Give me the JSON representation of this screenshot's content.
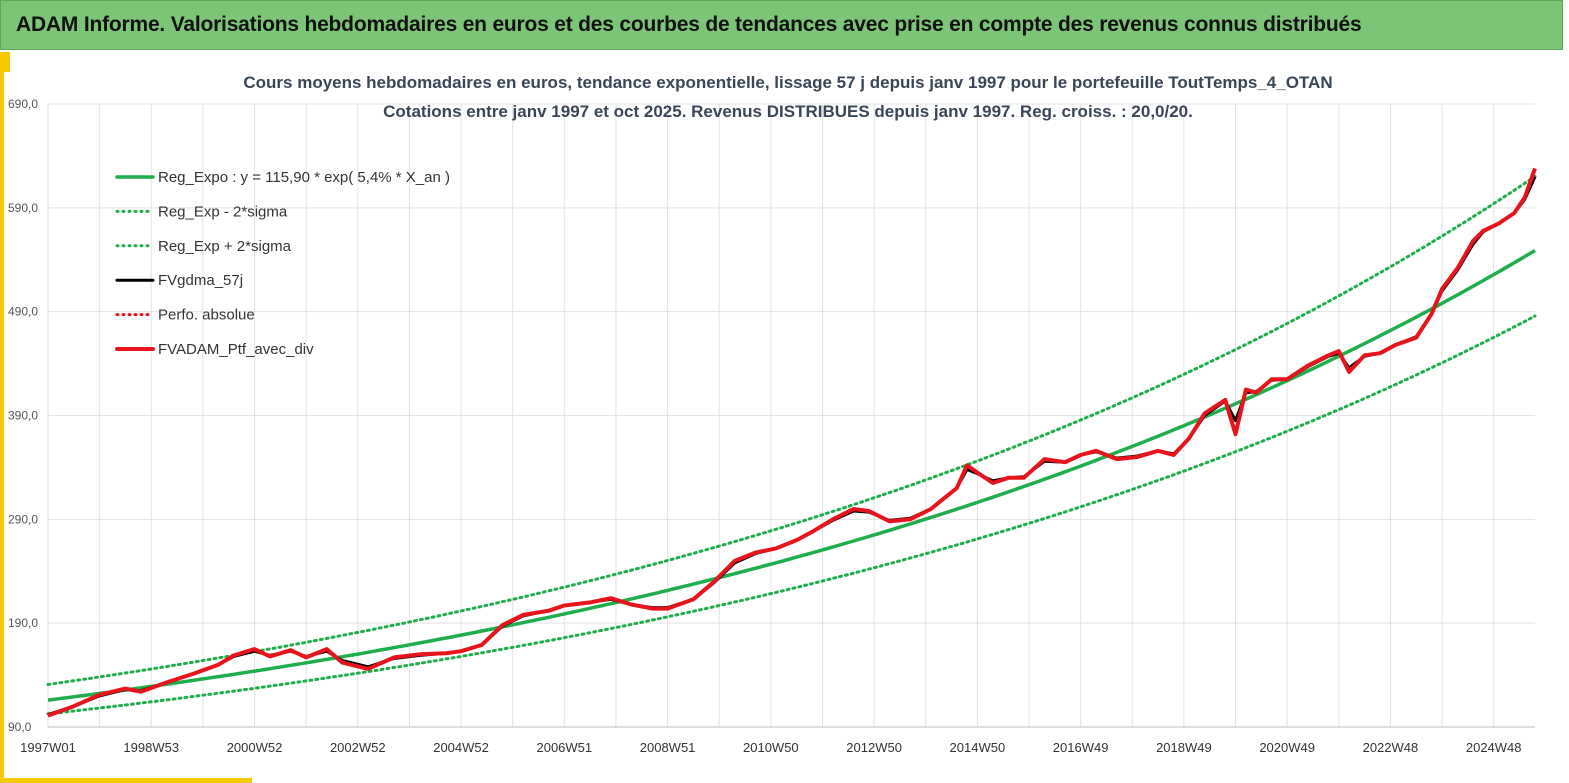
{
  "banner": {
    "title": "ADAM Informe. Valorisations hebdomadaires en euros et des courbes de tendances avec prise en compte des revenus connus distribués"
  },
  "colors": {
    "banner_bg": "#7cc576",
    "accent": "#f5c800",
    "green": "#1fae4b",
    "red": "#e8141b",
    "black": "#000000",
    "grid": "#e3e3e3"
  },
  "chart_data": {
    "type": "line",
    "title_lines": [
      "Cours moyens hebdomadaires  en euros, tendance exponentielle, lissage 57 j depuis janv 1997 pour le portefeuille ToutTemps_4_OTAN",
      "Cotations  entre janv 1997 et oct 2025. Revenus DISTRIBUES  depuis janv 1997. Reg. croiss. : 20,0/20."
    ],
    "y_axis": {
      "min": 90,
      "max": 690,
      "ticks": [
        90,
        190,
        290,
        390,
        490,
        590,
        690
      ],
      "tick_labels": [
        "90,0",
        "190,0",
        "290,0",
        "390,0",
        "490,0",
        "590,0",
        "690,0"
      ]
    },
    "x_axis": {
      "min": 1997.0,
      "max": 2025.8,
      "ticks": [
        1997.0,
        1999.0,
        2001.0,
        2003.0,
        2005.0,
        2007.0,
        2009.0,
        2011.0,
        2013.0,
        2015.0,
        2017.0,
        2019.0,
        2021.0,
        2023.0,
        2025.0
      ],
      "tick_labels": [
        "1997W01",
        "1998W53",
        "2000W52",
        "2002W52",
        "2004W52",
        "2006W51",
        "2008W51",
        "2010W50",
        "2012W50",
        "2014W50",
        "2016W49",
        "2018W49",
        "2020W49",
        "2022W48",
        "2024W48"
      ]
    },
    "grid": true,
    "legend_position": "top-left",
    "legend": [
      {
        "label": "Reg_Expo : y = 115,90 * exp( 5,4% *  X_an )",
        "color": "#1fae4b",
        "style": "solid",
        "width": 3.5
      },
      {
        "label": "Reg_Exp - 2*sigma",
        "color": "#1fae4b",
        "style": "dotted",
        "width": 3
      },
      {
        "label": "Reg_Exp + 2*sigma",
        "color": "#1fae4b",
        "style": "dotted",
        "width": 3
      },
      {
        "label": "FVgdma_57j",
        "color": "#000000",
        "style": "solid",
        "width": 3
      },
      {
        "label": "Perfo. absolue",
        "color": "#e8141b",
        "style": "dotted",
        "width": 3
      },
      {
        "label": "FVADAM_Ptf_avec_div",
        "color": "#e8141b",
        "style": "solid",
        "width": 4
      }
    ],
    "regression": {
      "a": 115.9,
      "growth": 0.054,
      "x0": 1997.0,
      "upper_factor": 1.13,
      "lower_factor": 0.885
    },
    "series_price": {
      "name": "FVADAM_Ptf_avec_div",
      "x": [
        1997.0,
        1997.5,
        1998.0,
        1998.5,
        1998.8,
        1999.3,
        1999.8,
        2000.3,
        2000.6,
        2001.0,
        2001.3,
        2001.7,
        2002.0,
        2002.4,
        2002.7,
        2003.2,
        2003.7,
        2004.2,
        2004.7,
        2005.0,
        2005.4,
        2005.8,
        2006.2,
        2006.7,
        2007.0,
        2007.5,
        2007.9,
        2008.3,
        2008.7,
        2009.0,
        2009.5,
        2009.9,
        2010.3,
        2010.7,
        2011.1,
        2011.5,
        2011.8,
        2012.2,
        2012.6,
        2012.9,
        2013.3,
        2013.7,
        2014.1,
        2014.3,
        2014.6,
        2014.8,
        2015.0,
        2015.3,
        2015.6,
        2015.9,
        2016.3,
        2016.7,
        2017.0,
        2017.3,
        2017.7,
        2018.1,
        2018.5,
        2018.8,
        2019.1,
        2019.4,
        2019.8,
        2020.0,
        2020.2,
        2020.4,
        2020.7,
        2021.0,
        2021.4,
        2021.8,
        2022.0,
        2022.2,
        2022.5,
        2022.8,
        2023.1,
        2023.5,
        2023.8,
        2024.0,
        2024.3,
        2024.6,
        2024.8,
        2025.1,
        2025.4,
        2025.6,
        2025.8
      ],
      "y": [
        101,
        110,
        121,
        127,
        124,
        133,
        141,
        150,
        159,
        165,
        158,
        164,
        157,
        165,
        152,
        146,
        157,
        160,
        161,
        163,
        169,
        188,
        198,
        202,
        207,
        210,
        214,
        208,
        204,
        204,
        213,
        230,
        250,
        258,
        262,
        270,
        278,
        290,
        300,
        298,
        288,
        290,
        300,
        308,
        320,
        342,
        335,
        325,
        330,
        330,
        348,
        345,
        352,
        356,
        348,
        350,
        356,
        352,
        368,
        392,
        405,
        372,
        415,
        412,
        425,
        425,
        438,
        448,
        452,
        432,
        448,
        450,
        458,
        465,
        488,
        512,
        532,
        558,
        568,
        575,
        585,
        600,
        628
      ]
    },
    "series_smooth": {
      "name": "FVgdma_57j",
      "x": [
        1997.0,
        1997.5,
        1998.0,
        1998.5,
        1998.8,
        1999.3,
        1999.8,
        2000.3,
        2000.6,
        2001.0,
        2001.3,
        2001.7,
        2002.0,
        2002.4,
        2002.7,
        2003.2,
        2003.7,
        2004.2,
        2004.7,
        2005.0,
        2005.4,
        2005.8,
        2006.2,
        2006.7,
        2007.0,
        2007.5,
        2007.9,
        2008.3,
        2008.7,
        2009.0,
        2009.5,
        2009.9,
        2010.3,
        2010.7,
        2011.1,
        2011.5,
        2011.8,
        2012.2,
        2012.6,
        2012.9,
        2013.3,
        2013.7,
        2014.1,
        2014.3,
        2014.6,
        2014.8,
        2015.0,
        2015.3,
        2015.6,
        2015.9,
        2016.3,
        2016.7,
        2017.0,
        2017.3,
        2017.7,
        2018.1,
        2018.5,
        2018.8,
        2019.1,
        2019.4,
        2019.8,
        2020.0,
        2020.2,
        2020.4,
        2020.7,
        2021.0,
        2021.4,
        2021.8,
        2022.0,
        2022.2,
        2022.5,
        2022.8,
        2023.1,
        2023.5,
        2023.8,
        2024.0,
        2024.3,
        2024.6,
        2024.8,
        2025.1,
        2025.4,
        2025.6,
        2025.8
      ],
      "y": [
        102,
        110,
        120,
        126,
        125,
        133,
        141,
        150,
        158,
        163,
        159,
        163,
        158,
        163,
        154,
        148,
        156,
        159,
        161,
        163,
        169,
        187,
        197,
        202,
        207,
        210,
        213,
        208,
        205,
        205,
        213,
        229,
        248,
        257,
        262,
        270,
        278,
        289,
        298,
        297,
        289,
        291,
        300,
        308,
        320,
        338,
        334,
        327,
        330,
        331,
        346,
        345,
        352,
        355,
        349,
        351,
        356,
        353,
        368,
        390,
        404,
        385,
        412,
        413,
        424,
        425,
        437,
        447,
        450,
        436,
        447,
        450,
        458,
        466,
        488,
        510,
        530,
        555,
        567,
        575,
        585,
        598,
        620
      ]
    }
  }
}
